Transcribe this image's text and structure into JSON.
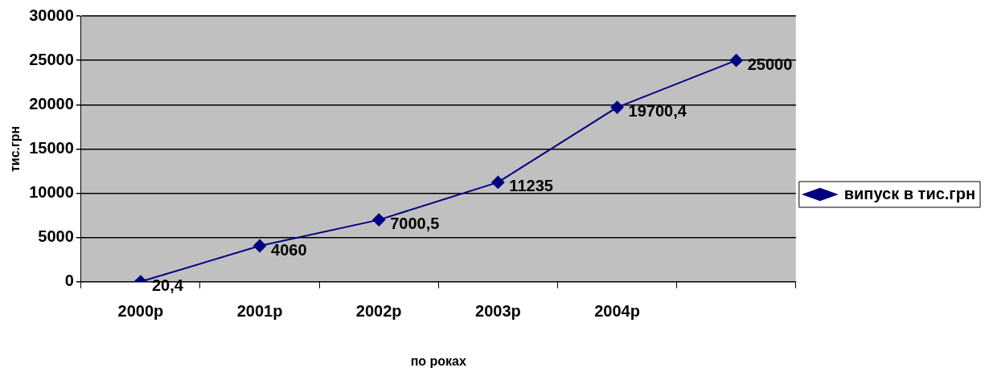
{
  "chart_data": {
    "type": "line",
    "xlabel": "по роках",
    "ylabel": "тис.грн",
    "categories": [
      "2000р",
      "2001р",
      "2002р",
      "2003р",
      "2004р",
      null
    ],
    "series": [
      {
        "name": "випуск в тис.грн",
        "color": "#000080",
        "values": [
          20.4,
          4060,
          7000.5,
          11235,
          19700.4,
          25000
        ],
        "value_labels": [
          "20,4",
          "4060",
          "7000,5",
          "11235",
          "19700,4",
          "25000"
        ]
      }
    ],
    "ylim": [
      0,
      30000
    ],
    "yticks": [
      0,
      5000,
      10000,
      15000,
      20000,
      25000,
      30000
    ],
    "grid": "y",
    "legend": "right",
    "marker": "diamond",
    "line_style": "solid"
  }
}
